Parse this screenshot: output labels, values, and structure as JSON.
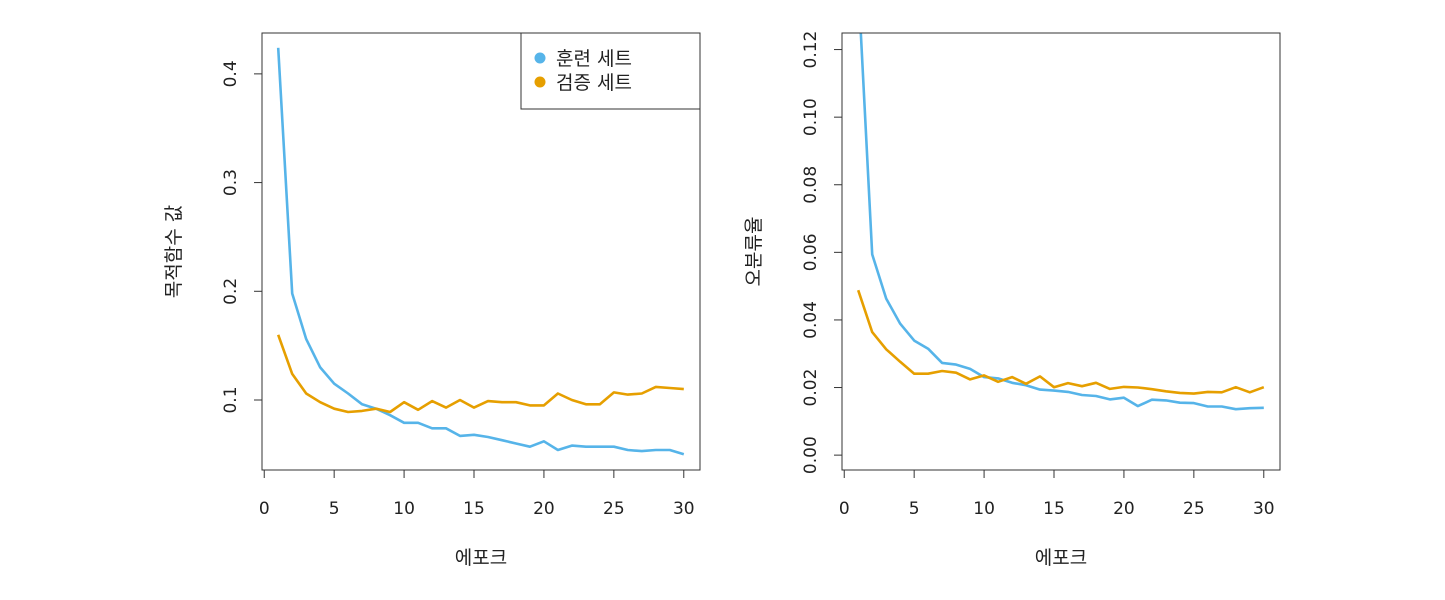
{
  "colors": {
    "train": "#56b4e9",
    "validation": "#e69f00",
    "axis": "#333333"
  },
  "chart_data": [
    {
      "type": "line",
      "xlabel": "에포크",
      "ylabel": "목적함수 값",
      "xlim": [
        -0.16,
        31.16
      ],
      "ylim": [
        0.0356,
        0.4376
      ],
      "xticks": [
        0,
        5,
        10,
        15,
        20,
        25,
        30
      ],
      "yticks": [
        0.1,
        0.2,
        0.3,
        0.4
      ],
      "ytick_labels": [
        "0.1",
        "0.2",
        "0.3",
        "0.4"
      ],
      "grid": false,
      "legend": {
        "placement": "top-right",
        "entries": [
          "훈련 세트",
          "검증 세트"
        ]
      },
      "x": [
        1,
        2,
        3,
        4,
        5,
        6,
        7,
        8,
        9,
        10,
        11,
        12,
        13,
        14,
        15,
        16,
        17,
        18,
        19,
        20,
        21,
        22,
        23,
        24,
        25,
        26,
        27,
        28,
        29,
        30
      ],
      "series": [
        {
          "name": "훈련 세트",
          "color": "#56b4e9",
          "values": [
            0.424,
            0.198,
            0.156,
            0.13,
            0.115,
            0.106,
            0.096,
            0.092,
            0.086,
            0.079,
            0.079,
            0.074,
            0.074,
            0.067,
            0.068,
            0.066,
            0.063,
            0.06,
            0.057,
            0.062,
            0.054,
            0.058,
            0.057,
            0.057,
            0.057,
            0.054,
            0.053,
            0.054,
            0.054,
            0.05
          ]
        },
        {
          "name": "검증 세트",
          "color": "#e69f00",
          "values": [
            0.16,
            0.124,
            0.106,
            0.098,
            0.092,
            0.089,
            0.09,
            0.092,
            0.089,
            0.098,
            0.091,
            0.099,
            0.093,
            0.1,
            0.093,
            0.099,
            0.098,
            0.098,
            0.095,
            0.095,
            0.106,
            0.1,
            0.096,
            0.096,
            0.107,
            0.105,
            0.106,
            0.112,
            0.111,
            0.11
          ]
        }
      ]
    },
    {
      "type": "line",
      "xlabel": "에포크",
      "ylabel": "오분류율",
      "xlim": [
        -0.16,
        31.16
      ],
      "ylim": [
        -0.0044,
        0.1249
      ],
      "xticks": [
        0,
        5,
        10,
        15,
        20,
        25,
        30
      ],
      "yticks": [
        0.0,
        0.02,
        0.04,
        0.06,
        0.08,
        0.1,
        0.12
      ],
      "ytick_labels": [
        "0.00",
        "0.02",
        "0.04",
        "0.06",
        "0.08",
        "0.10",
        "0.12"
      ],
      "grid": false,
      "x": [
        1,
        2,
        3,
        4,
        5,
        6,
        7,
        8,
        9,
        10,
        11,
        12,
        13,
        14,
        15,
        16,
        17,
        18,
        19,
        20,
        21,
        22,
        23,
        24,
        25,
        26,
        27,
        28,
        29,
        30
      ],
      "series": [
        {
          "color": "#56b4e9",
          "values": [
            0.14,
            0.0594,
            0.0463,
            0.0389,
            0.0339,
            0.0315,
            0.0273,
            0.0268,
            0.0255,
            0.0231,
            0.0227,
            0.0214,
            0.0207,
            0.0194,
            0.0191,
            0.0187,
            0.0178,
            0.0175,
            0.0165,
            0.017,
            0.0145,
            0.0164,
            0.0162,
            0.0155,
            0.0154,
            0.0144,
            0.0144,
            0.0136,
            0.0139,
            0.014
          ]
        },
        {
          "color": "#e69f00",
          "values": [
            0.0488,
            0.0364,
            0.0313,
            0.0276,
            0.0241,
            0.0241,
            0.0249,
            0.0244,
            0.0224,
            0.0236,
            0.0217,
            0.0231,
            0.0211,
            0.0233,
            0.0201,
            0.0213,
            0.0204,
            0.0214,
            0.0196,
            0.0202,
            0.02,
            0.0195,
            0.0189,
            0.0184,
            0.0182,
            0.0187,
            0.0186,
            0.0201,
            0.0186,
            0.0201
          ]
        }
      ]
    }
  ]
}
